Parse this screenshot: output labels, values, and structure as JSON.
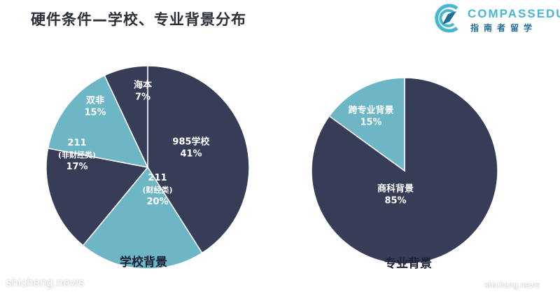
{
  "header": {
    "title": "硬件条件—学校、专业背景分布"
  },
  "logo": {
    "wordmark": "COMPASSEDU",
    "subtext": "指南者留学"
  },
  "colors": {
    "dark_navy": "#373d57",
    "teal": "#6cb6c6",
    "label": "#ffffff"
  },
  "chart_data": [
    {
      "type": "pie",
      "title": "学校背景",
      "slices": [
        {
          "label": "985学校",
          "value": 41,
          "display": "41%",
          "color": "#373d57"
        },
        {
          "label": "211(财经类)",
          "value": 20,
          "display": "20%",
          "color": "#6cb6c6"
        },
        {
          "label": "211(非财经类)",
          "value": 17,
          "display": "17%",
          "color": "#373d57"
        },
        {
          "label": "双非",
          "value": 15,
          "display": "15%",
          "color": "#6cb6c6"
        },
        {
          "label": "海本",
          "value": 7,
          "display": "7%",
          "color": "#373d57"
        }
      ]
    },
    {
      "type": "pie",
      "title": "专业背景",
      "slices": [
        {
          "label": "商科背景",
          "value": 85,
          "display": "85%",
          "color": "#373d57"
        },
        {
          "label": "跨专业背景",
          "value": 15,
          "display": "15%",
          "color": "#6cb6c6"
        }
      ]
    }
  ],
  "slice_text": {
    "school": [
      {
        "lines": [
          "985学校",
          "41%"
        ]
      },
      {
        "lines": [
          "211",
          "(财经类)",
          "20%"
        ]
      },
      {
        "lines": [
          "211",
          "(非财经类)",
          "17%"
        ]
      },
      {
        "lines": [
          "双非",
          "15%"
        ]
      },
      {
        "lines": [
          "海本",
          "7%"
        ]
      }
    ],
    "major": [
      {
        "lines": [
          "商科背景",
          "85%"
        ]
      },
      {
        "lines": [
          "跨专业背景",
          "15%"
        ]
      }
    ]
  },
  "watermark": {
    "left": "shicheng.news",
    "right": "shicheng.news"
  }
}
